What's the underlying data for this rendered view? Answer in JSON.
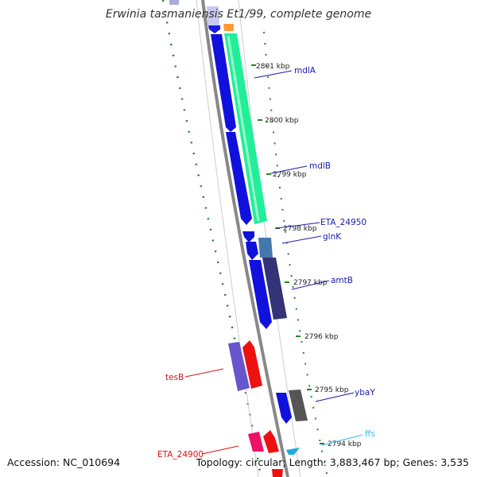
{
  "title": "Erwinia tasmaniensis Et1/99, complete genome",
  "footer": {
    "accession": "Accession: NC_010694",
    "summary": "Topology: circular; Length: 3,883,467 bp; Genes: 3,535"
  },
  "scale_labels": [
    "2801 kbp",
    "2800 kbp",
    "2799 kbp",
    "2798 kbp",
    "2797 kbp",
    "2796 kbp",
    "2795 kbp",
    "2794 kbp"
  ],
  "gene_labels": [
    {
      "text": "mdlA",
      "color": "#1a1aaa"
    },
    {
      "text": "mdlB",
      "color": "#1a1aaa"
    },
    {
      "text": "ETA_24950",
      "color": "#1a1aaa"
    },
    {
      "text": "glnK",
      "color": "#1a1aaa"
    },
    {
      "text": "amtB",
      "color": "#1a1aaa"
    },
    {
      "text": "ybaY",
      "color": "#1a1aaa"
    },
    {
      "text": "ffs",
      "color": "#33bbee"
    },
    {
      "text": "tesB",
      "color": "#dd1111"
    },
    {
      "text": "ETA_24900",
      "color": "#dd1111"
    }
  ]
}
